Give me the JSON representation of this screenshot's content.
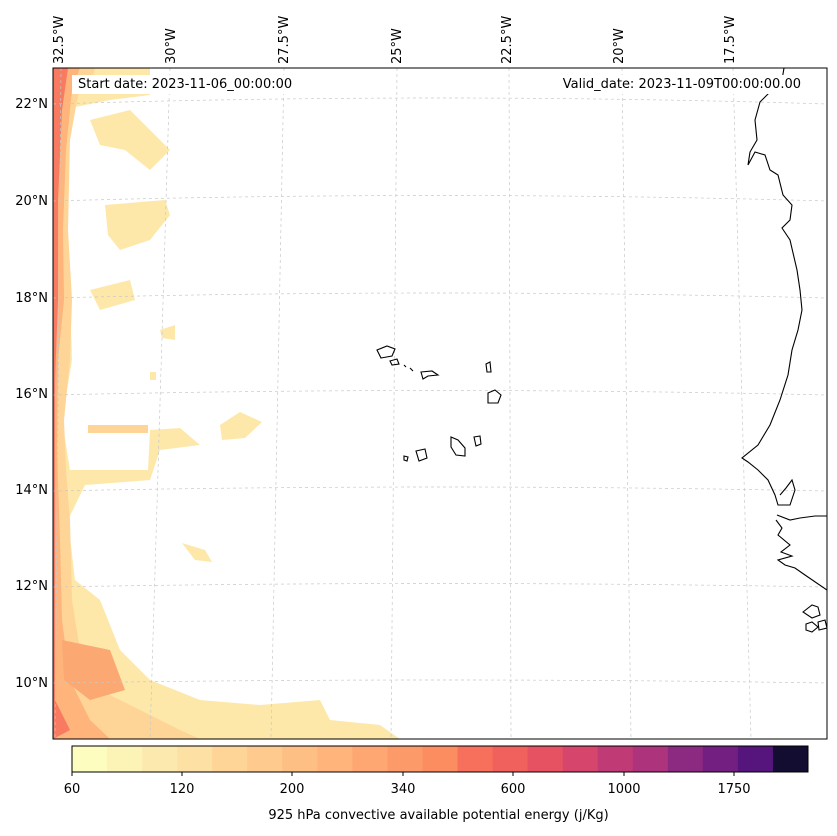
{
  "map": {
    "start_date": "Start date: 2023-11-06_00:00:00",
    "valid_date": "Valid_date: 2023-11-09T00:00:00.00",
    "lon_labels": [
      "32.5°W",
      "30°W",
      "27.5°W",
      "25°W",
      "22.5°W",
      "20°W",
      "17.5°W"
    ],
    "lat_labels": [
      "22°N",
      "20°N",
      "18°N",
      "16°N",
      "14°N",
      "12°N",
      "10°N"
    ],
    "variable": "925 hPa convective available potential energy (j/Kg)"
  },
  "colorbar": {
    "levels": [
      60,
      80,
      100,
      120,
      140,
      160,
      200,
      240,
      280,
      340,
      400,
      480,
      600,
      700,
      800,
      1000,
      1250,
      1500,
      1750,
      2000,
      2500
    ],
    "tick_labels": [
      "60",
      "120",
      "200",
      "340",
      "600",
      "1000",
      "1750"
    ],
    "colors": [
      "#fcfdbf",
      "#fcf4b6",
      "#fce9ad",
      "#fde0a3",
      "#fed597",
      "#feca8d",
      "#febf84",
      "#feb47b",
      "#fea772",
      "#fd9a6a",
      "#fb8d61",
      "#f7705c",
      "#f0605d",
      "#e75263",
      "#d6456c",
      "#c03a76",
      "#ad347c",
      "#8c2981",
      "#721f81",
      "#56147d",
      "#120d31"
    ],
    "title": "925 hPa convective available potential energy (j/Kg)"
  }
}
